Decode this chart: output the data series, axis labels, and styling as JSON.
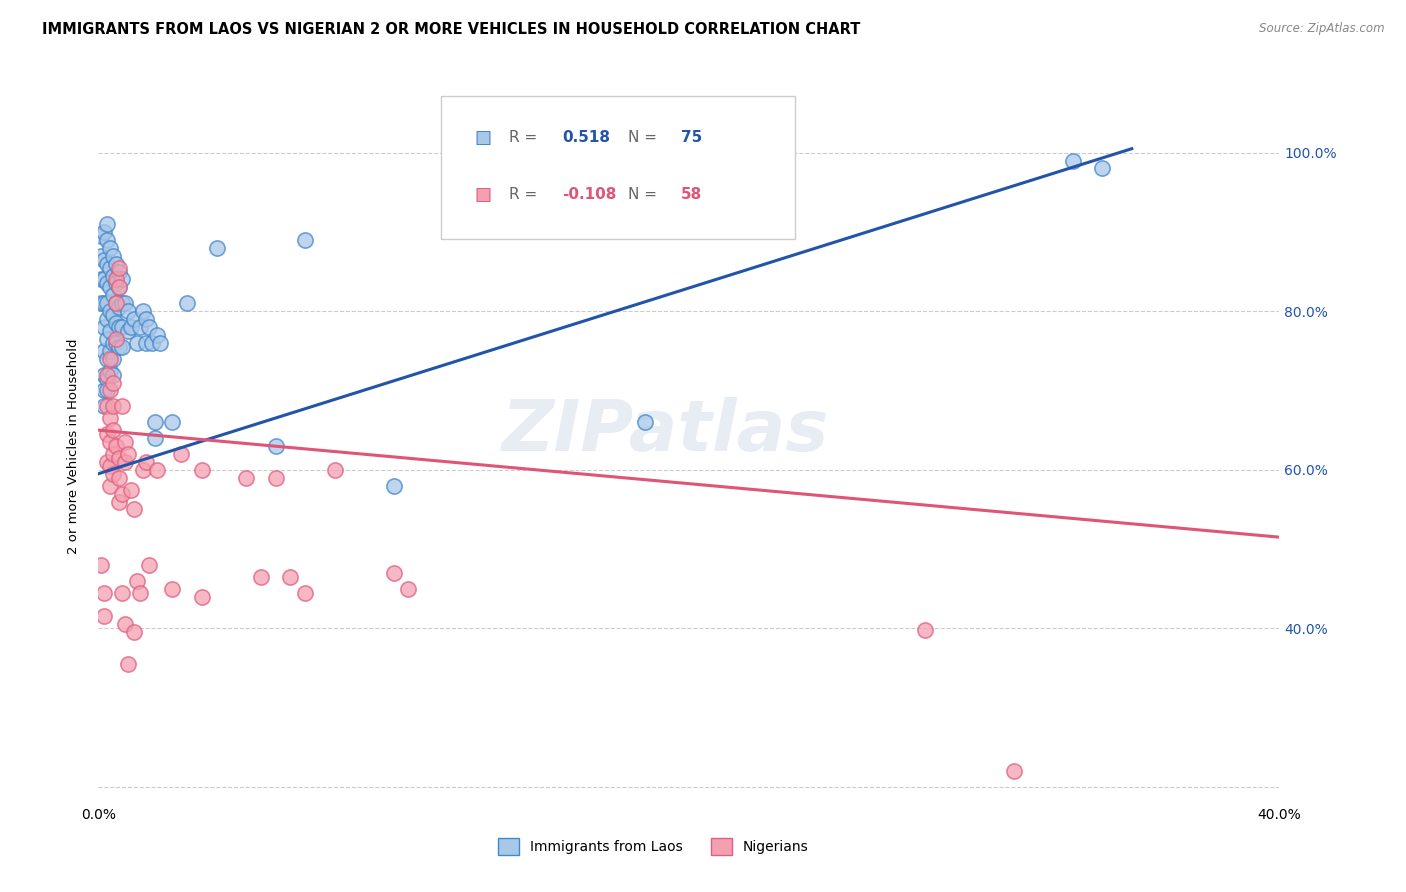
{
  "title": "IMMIGRANTS FROM LAOS VS NIGERIAN 2 OR MORE VEHICLES IN HOUSEHOLD CORRELATION CHART",
  "source": "Source: ZipAtlas.com",
  "ylabel": "2 or more Vehicles in Household",
  "legend_label_blue": "Immigrants from Laos",
  "legend_label_pink": "Nigerians",
  "watermark": "ZIPatlas",
  "r_blue": "0.518",
  "n_blue": "75",
  "r_pink": "-0.108",
  "n_pink": "58",
  "xlim": [
    0.0,
    0.4
  ],
  "ylim": [
    0.18,
    1.08
  ],
  "x_tick_positions": [
    0.0,
    0.05,
    0.1,
    0.15,
    0.2,
    0.25,
    0.3,
    0.35,
    0.4
  ],
  "x_tick_labels": [
    "0.0%",
    "",
    "",
    "",
    "",
    "",
    "",
    "",
    "40.0%"
  ],
  "y_tick_positions": [
    0.2,
    0.4,
    0.6,
    0.8,
    1.0
  ],
  "right_tick_labels": [
    "",
    "40.0%",
    "60.0%",
    "80.0%",
    "100.0%"
  ],
  "blue_line_x": [
    0.0,
    0.35
  ],
  "blue_line_y": [
    0.595,
    1.005
  ],
  "pink_line_x": [
    0.0,
    0.4
  ],
  "pink_line_y": [
    0.65,
    0.515
  ],
  "blue_color": "#A8C8E8",
  "pink_color": "#F4A0B0",
  "blue_edge_color": "#4488CC",
  "pink_edge_color": "#E06080",
  "blue_line_color": "#2255AA",
  "pink_line_color": "#E05575",
  "grid_color": "#CCCCCC",
  "scatter_size": 120,
  "scatter_alpha": 0.75,
  "line_width": 2.2,
  "blue_scatter": [
    [
      0.001,
      0.895
    ],
    [
      0.001,
      0.87
    ],
    [
      0.001,
      0.84
    ],
    [
      0.001,
      0.81
    ],
    [
      0.002,
      0.9
    ],
    [
      0.002,
      0.865
    ],
    [
      0.002,
      0.84
    ],
    [
      0.002,
      0.81
    ],
    [
      0.002,
      0.78
    ],
    [
      0.002,
      0.75
    ],
    [
      0.002,
      0.72
    ],
    [
      0.002,
      0.7
    ],
    [
      0.002,
      0.68
    ],
    [
      0.003,
      0.91
    ],
    [
      0.003,
      0.89
    ],
    [
      0.003,
      0.86
    ],
    [
      0.003,
      0.835
    ],
    [
      0.003,
      0.81
    ],
    [
      0.003,
      0.79
    ],
    [
      0.003,
      0.765
    ],
    [
      0.003,
      0.74
    ],
    [
      0.003,
      0.715
    ],
    [
      0.003,
      0.7
    ],
    [
      0.004,
      0.88
    ],
    [
      0.004,
      0.855
    ],
    [
      0.004,
      0.83
    ],
    [
      0.004,
      0.8
    ],
    [
      0.004,
      0.775
    ],
    [
      0.004,
      0.75
    ],
    [
      0.004,
      0.725
    ],
    [
      0.005,
      0.87
    ],
    [
      0.005,
      0.845
    ],
    [
      0.005,
      0.82
    ],
    [
      0.005,
      0.795
    ],
    [
      0.005,
      0.76
    ],
    [
      0.005,
      0.74
    ],
    [
      0.005,
      0.72
    ],
    [
      0.006,
      0.86
    ],
    [
      0.006,
      0.835
    ],
    [
      0.006,
      0.81
    ],
    [
      0.006,
      0.785
    ],
    [
      0.006,
      0.76
    ],
    [
      0.007,
      0.85
    ],
    [
      0.007,
      0.83
    ],
    [
      0.007,
      0.805
    ],
    [
      0.007,
      0.78
    ],
    [
      0.007,
      0.755
    ],
    [
      0.008,
      0.84
    ],
    [
      0.008,
      0.81
    ],
    [
      0.008,
      0.78
    ],
    [
      0.008,
      0.755
    ],
    [
      0.009,
      0.81
    ],
    [
      0.01,
      0.8
    ],
    [
      0.01,
      0.775
    ],
    [
      0.011,
      0.78
    ],
    [
      0.012,
      0.79
    ],
    [
      0.013,
      0.76
    ],
    [
      0.014,
      0.78
    ],
    [
      0.015,
      0.8
    ],
    [
      0.016,
      0.79
    ],
    [
      0.016,
      0.76
    ],
    [
      0.017,
      0.78
    ],
    [
      0.018,
      0.76
    ],
    [
      0.019,
      0.66
    ],
    [
      0.019,
      0.64
    ],
    [
      0.02,
      0.77
    ],
    [
      0.021,
      0.76
    ],
    [
      0.025,
      0.66
    ],
    [
      0.03,
      0.81
    ],
    [
      0.04,
      0.88
    ],
    [
      0.06,
      0.63
    ],
    [
      0.07,
      0.89
    ],
    [
      0.1,
      0.58
    ],
    [
      0.185,
      0.66
    ],
    [
      0.33,
      0.99
    ],
    [
      0.34,
      0.98
    ]
  ],
  "pink_scatter": [
    [
      0.001,
      0.48
    ],
    [
      0.002,
      0.445
    ],
    [
      0.002,
      0.415
    ],
    [
      0.003,
      0.72
    ],
    [
      0.003,
      0.68
    ],
    [
      0.003,
      0.645
    ],
    [
      0.003,
      0.61
    ],
    [
      0.004,
      0.74
    ],
    [
      0.004,
      0.7
    ],
    [
      0.004,
      0.665
    ],
    [
      0.004,
      0.635
    ],
    [
      0.004,
      0.605
    ],
    [
      0.004,
      0.58
    ],
    [
      0.005,
      0.71
    ],
    [
      0.005,
      0.68
    ],
    [
      0.005,
      0.65
    ],
    [
      0.005,
      0.62
    ],
    [
      0.005,
      0.595
    ],
    [
      0.006,
      0.84
    ],
    [
      0.006,
      0.81
    ],
    [
      0.006,
      0.765
    ],
    [
      0.006,
      0.63
    ],
    [
      0.007,
      0.855
    ],
    [
      0.007,
      0.83
    ],
    [
      0.007,
      0.615
    ],
    [
      0.007,
      0.59
    ],
    [
      0.007,
      0.56
    ],
    [
      0.008,
      0.68
    ],
    [
      0.008,
      0.57
    ],
    [
      0.008,
      0.445
    ],
    [
      0.009,
      0.635
    ],
    [
      0.009,
      0.61
    ],
    [
      0.009,
      0.405
    ],
    [
      0.01,
      0.62
    ],
    [
      0.01,
      0.355
    ],
    [
      0.011,
      0.575
    ],
    [
      0.012,
      0.55
    ],
    [
      0.012,
      0.395
    ],
    [
      0.013,
      0.46
    ],
    [
      0.014,
      0.445
    ],
    [
      0.015,
      0.6
    ],
    [
      0.016,
      0.61
    ],
    [
      0.017,
      0.48
    ],
    [
      0.02,
      0.6
    ],
    [
      0.025,
      0.45
    ],
    [
      0.028,
      0.62
    ],
    [
      0.035,
      0.6
    ],
    [
      0.035,
      0.44
    ],
    [
      0.05,
      0.59
    ],
    [
      0.055,
      0.465
    ],
    [
      0.06,
      0.59
    ],
    [
      0.065,
      0.465
    ],
    [
      0.07,
      0.445
    ],
    [
      0.08,
      0.6
    ],
    [
      0.1,
      0.47
    ],
    [
      0.105,
      0.45
    ],
    [
      0.28,
      0.398
    ],
    [
      0.31,
      0.22
    ]
  ]
}
